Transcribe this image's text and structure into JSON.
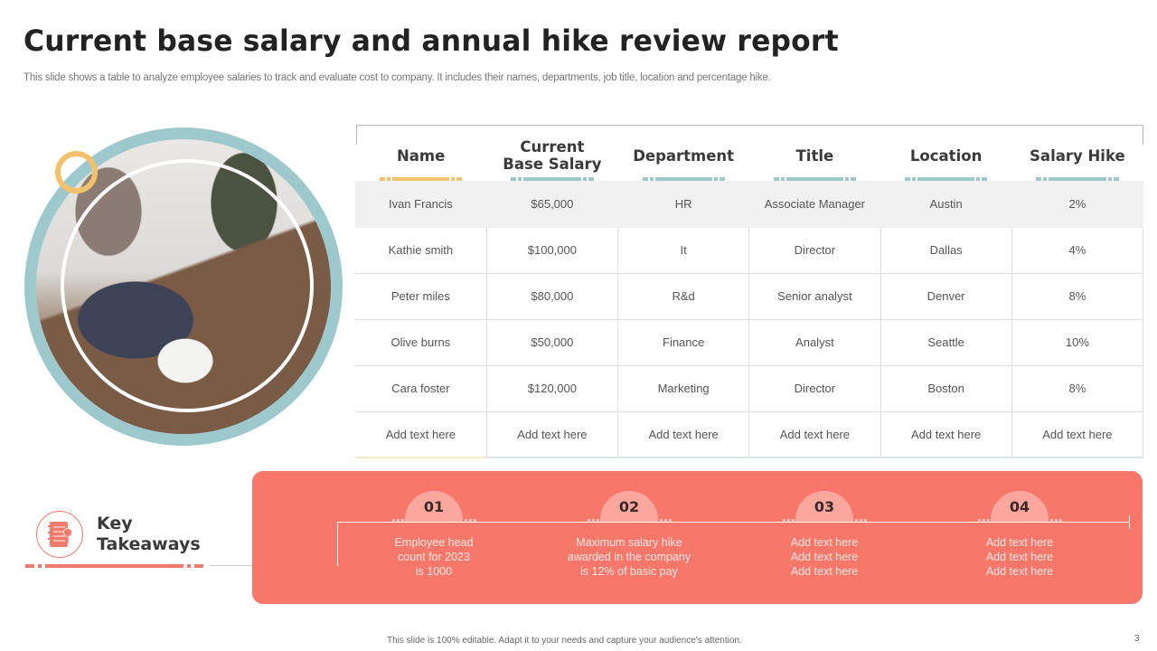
{
  "header": {
    "title": "Current base salary and annual hike review report",
    "subtitle": "This slide shows a table to analyze  employee salaries to track and evaluate cost to company. It includes their names, departments, job title, location and percentage hike."
  },
  "image": {
    "description": "team-meeting-photo"
  },
  "table": {
    "columns": [
      {
        "label": "Name",
        "accent": "#f2c26a"
      },
      {
        "label": "Current\nBase Salary",
        "accent": "#9ec9cc"
      },
      {
        "label": "Department",
        "accent": "#9ec9cc"
      },
      {
        "label": "Title",
        "accent": "#9ec9cc"
      },
      {
        "label": "Location",
        "accent": "#9ec9cc"
      },
      {
        "label": "Salary Hike",
        "accent": "#9ec9cc"
      }
    ],
    "rows": [
      [
        "Ivan  Francis",
        "$65,000",
        "HR",
        "Associate Manager",
        "Austin",
        "2%"
      ],
      [
        "Kathie smith",
        "$100,000",
        "It",
        "Director",
        "Dallas",
        "4%"
      ],
      [
        "Peter miles",
        "$80,000",
        "R&d",
        "Senior analyst",
        "Denver",
        "8%"
      ],
      [
        "Olive  burns",
        "$50,000",
        "Finance",
        "Analyst",
        "Seattle",
        "10%"
      ],
      [
        "Cara foster",
        "$120,000",
        "Marketing",
        "Director",
        "Boston",
        "8%"
      ],
      [
        "Add text here",
        "Add text here",
        "Add text here",
        "Add text here",
        "Add text here",
        "Add text here"
      ]
    ]
  },
  "key_takeaways": {
    "label_line1": "Key",
    "label_line2": "Takeaways",
    "icon": "notebook-icon",
    "items": [
      {
        "number": "01",
        "text": "Employee head\ncount for 2023\nis 1000"
      },
      {
        "number": "02",
        "text": "Maximum salary hike\nawarded in the company\nis 12% of basic pay"
      },
      {
        "number": "03",
        "text": "Add text here\nAdd text here\nAdd text here"
      },
      {
        "number": "04",
        "text": "Add text here\nAdd text here\nAdd text here"
      }
    ]
  },
  "colors": {
    "coral": "#f7786b",
    "teal": "#9ec9cc",
    "yellow": "#f2c26a"
  },
  "footer": {
    "note": "This slide is 100% editable.  Adapt it to your needs and capture your audience's attention.",
    "page_number": "3"
  }
}
